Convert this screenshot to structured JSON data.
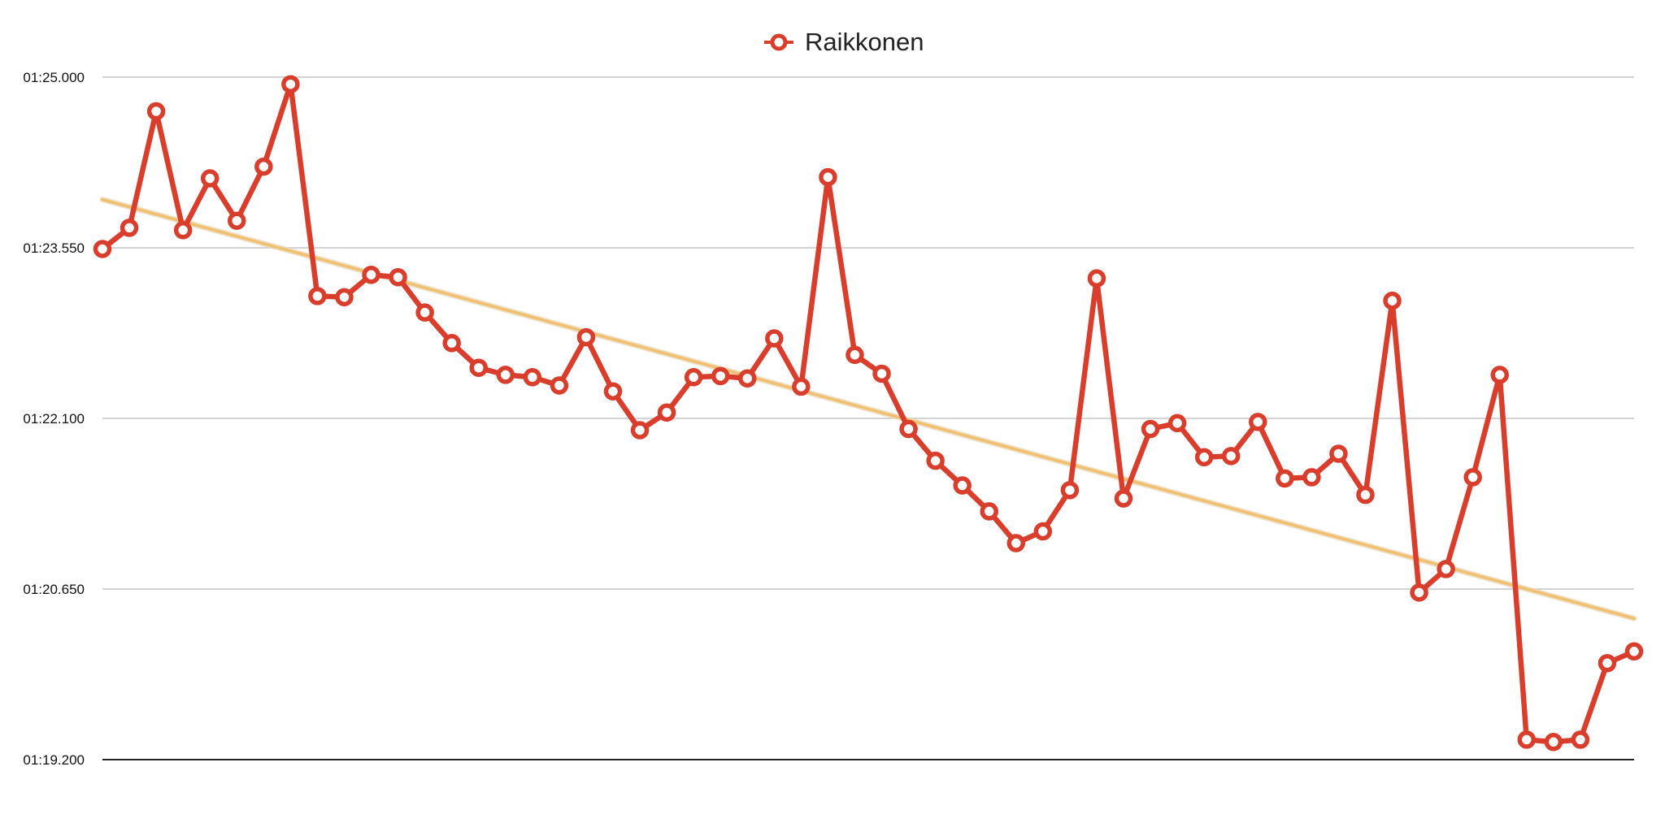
{
  "chart_data": {
    "type": "line",
    "title": "",
    "xlabel": "",
    "ylabel": "",
    "y_ticks": [
      "01:19.200",
      "01:20.650",
      "01:22.100",
      "01:23.550",
      "01:25.000"
    ],
    "ylim": [
      79.2,
      85.0
    ],
    "grid": true,
    "legend_position": "top-center",
    "series": [
      {
        "name": "Raikkonen",
        "color": "#d93d2b",
        "marker": "circle-open",
        "values": [
          83.54,
          83.72,
          84.71,
          83.7,
          84.14,
          83.78,
          84.24,
          84.94,
          83.14,
          83.13,
          83.32,
          83.3,
          83.0,
          82.74,
          82.53,
          82.47,
          82.45,
          82.38,
          82.79,
          82.33,
          82.0,
          82.15,
          82.45,
          82.46,
          82.44,
          82.78,
          82.37,
          84.15,
          82.64,
          82.48,
          82.01,
          81.74,
          81.53,
          81.31,
          81.04,
          81.14,
          81.49,
          83.29,
          81.42,
          82.01,
          82.06,
          81.77,
          81.78,
          82.07,
          81.59,
          81.6,
          81.8,
          81.45,
          83.1,
          80.62,
          80.82,
          81.6,
          82.47,
          79.37,
          79.35,
          79.37,
          80.02,
          80.12
        ]
      }
    ],
    "trendline": {
      "color": "#f0c070",
      "start": 83.96,
      "end": 80.4
    },
    "axis_color": "#222222",
    "grid_color": "#c6c6c6"
  }
}
